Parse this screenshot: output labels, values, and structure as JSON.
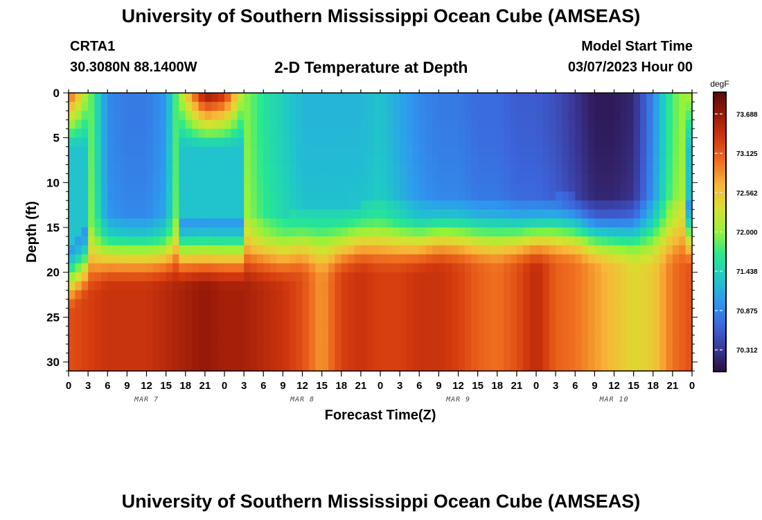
{
  "header": {
    "title": "University of Southern Mississippi Ocean Cube (AMSEAS)",
    "station": "CRTA1",
    "coords": "30.3080N  88.1400W",
    "plot_title": "2-D Temperature at Depth",
    "model_start_label": "Model Start Time",
    "model_start_value": "03/07/2023 Hour 00"
  },
  "footer": {
    "title": "University of Southern Mississippi Ocean Cube (AMSEAS)"
  },
  "chart_data": {
    "type": "heatmap",
    "title": "2-D Temperature at Depth",
    "xlabel": "Forecast Time(Z)",
    "ylabel": "Depth (ft)",
    "x_tick_labels": [
      "0",
      "3",
      "6",
      "9",
      "12",
      "15",
      "18",
      "21",
      "0",
      "3",
      "6",
      "9",
      "12",
      "15",
      "18",
      "21",
      "0",
      "3",
      "6",
      "9",
      "12",
      "15",
      "18",
      "21",
      "0",
      "3",
      "6",
      "9",
      "12",
      "15",
      "18",
      "21",
      "0"
    ],
    "date_labels": [
      {
        "label": "MAR 7",
        "hour": 12
      },
      {
        "label": "MAR 8",
        "hour": 36
      },
      {
        "label": "MAR 9",
        "hour": 60
      },
      {
        "label": "MAR 10",
        "hour": 84
      }
    ],
    "xlim_hours": [
      0,
      96
    ],
    "ylim_ft": [
      0,
      31
    ],
    "y_ticks": [
      0,
      5,
      10,
      15,
      20,
      25,
      30
    ],
    "y_reversed": true,
    "colorbar": {
      "unit": "degF",
      "ticks": [
        73.688,
        73.125,
        72.562,
        72.0,
        71.438,
        70.875,
        70.312
      ],
      "range": [
        70.0,
        74.0
      ],
      "colors": [
        "#2a0d3e",
        "#3a3a9a",
        "#3c66dd",
        "#2e99ef",
        "#1fc8c8",
        "#28e890",
        "#95f23a",
        "#d8e030",
        "#f7b838",
        "#f07020",
        "#d43a0e",
        "#9a1a08",
        "#5c0c0c"
      ]
    },
    "temperature_fields": {
      "hours": [
        0,
        3,
        6,
        9,
        12,
        15,
        18,
        21,
        24,
        27,
        30,
        33,
        36,
        39,
        42,
        45,
        48,
        51,
        54,
        57,
        60,
        63,
        66,
        69,
        72,
        75,
        78,
        81,
        84,
        87,
        90,
        93,
        96
      ],
      "thermocline_depth_ft": [
        20,
        18,
        17,
        17,
        17,
        17,
        17,
        17,
        17,
        17,
        17,
        17,
        16,
        16,
        16,
        15.5,
        15.5,
        15.5,
        15.5,
        15,
        15,
        15,
        15,
        15,
        15,
        14.5,
        14.5,
        15,
        15,
        15,
        15,
        15,
        15
      ],
      "surface_temp_degF": [
        73.2,
        72.0,
        70.9,
        70.8,
        70.8,
        71.0,
        72.5,
        73.8,
        73.5,
        72.0,
        71.6,
        71.4,
        71.2,
        71.2,
        71.2,
        71.2,
        71.3,
        71.1,
        70.9,
        70.8,
        70.8,
        70.7,
        70.7,
        70.6,
        70.6,
        70.5,
        70.3,
        70.1,
        70.1,
        70.2,
        70.9,
        71.8,
        72.2
      ],
      "bottom_temp_degF": [
        73.2,
        73.3,
        73.4,
        73.4,
        73.4,
        73.5,
        73.6,
        73.7,
        73.6,
        73.6,
        73.5,
        73.4,
        73.2,
        72.8,
        73.3,
        73.4,
        73.3,
        73.3,
        73.4,
        73.4,
        73.3,
        73.1,
        73.0,
        73.2,
        73.5,
        73.1,
        73.0,
        72.8,
        72.6,
        72.4,
        72.5,
        73.0,
        73.2
      ]
    }
  }
}
